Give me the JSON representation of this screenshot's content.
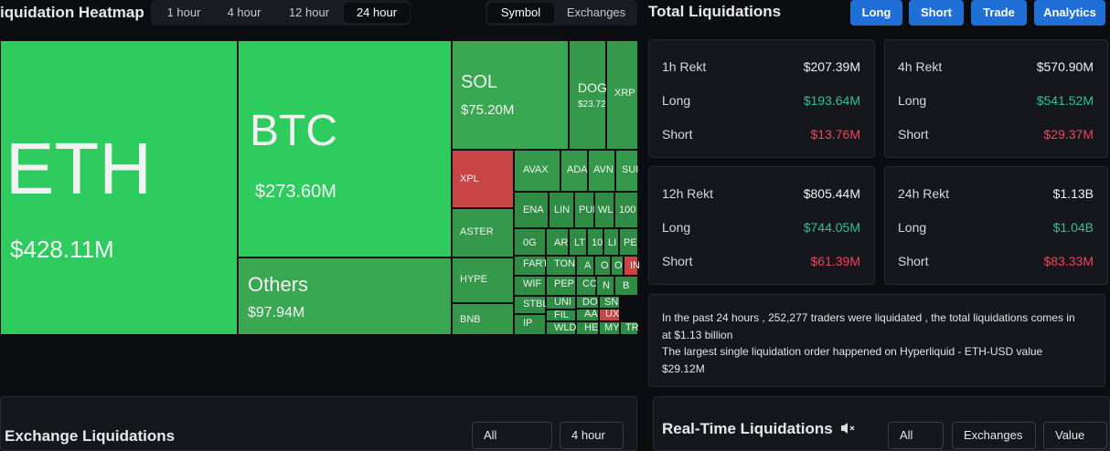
{
  "header": {
    "title": "iquidation Heatmap",
    "time_tabs": [
      "1 hour",
      "4 hour",
      "12 hour",
      "24 hour"
    ],
    "view_tabs": [
      "Symbol",
      "Exchanges"
    ]
  },
  "heatmap": {
    "tiles": [
      {
        "label": "ETH",
        "value": "$428.11M"
      },
      {
        "label": "BTC",
        "value": "$273.60M"
      },
      {
        "label": "Others",
        "value": "$97.94M"
      },
      {
        "label": "SOL",
        "value": "$75.20M"
      },
      {
        "label": "DOG",
        "value": "$23.72"
      },
      {
        "label": "XRP"
      },
      {
        "label": "XPL"
      },
      {
        "label": "AVAX"
      },
      {
        "label": "ADA"
      },
      {
        "label": "AVN"
      },
      {
        "label": "SUI"
      },
      {
        "label": "ASTER"
      },
      {
        "label": "HYPE"
      },
      {
        "label": "BNB"
      },
      {
        "label": "ENA"
      },
      {
        "label": "LIN"
      },
      {
        "label": "PUI"
      },
      {
        "label": "WL"
      },
      {
        "label": "100"
      },
      {
        "label": "0G"
      },
      {
        "label": "AR"
      },
      {
        "label": "LT"
      },
      {
        "label": "10"
      },
      {
        "label": "LI"
      },
      {
        "label": "PE"
      },
      {
        "label": "FART"
      },
      {
        "label": "TON"
      },
      {
        "label": "A"
      },
      {
        "label": "O"
      },
      {
        "label": "O"
      },
      {
        "label": "IN"
      },
      {
        "label": "WIF"
      },
      {
        "label": "PEP"
      },
      {
        "label": "CO"
      },
      {
        "label": "N"
      },
      {
        "label": "B"
      },
      {
        "label": "STBL"
      },
      {
        "label": "UNI"
      },
      {
        "label": "DO"
      },
      {
        "label": "SN"
      },
      {
        "label": "FIL"
      },
      {
        "label": "AA"
      },
      {
        "label": "UX"
      },
      {
        "label": "IP"
      },
      {
        "label": "WLD"
      },
      {
        "label": "HE"
      },
      {
        "label": "MY"
      },
      {
        "label": "TR"
      }
    ]
  },
  "total": {
    "title": "Total Liquidations",
    "buttons": [
      "Long",
      "Short",
      "Trade",
      "Analytics"
    ],
    "cards": [
      {
        "title": "1h Rekt",
        "total": "$207.39M",
        "long_label": "Long",
        "long": "$193.64M",
        "short_label": "Short",
        "short": "$13.76M"
      },
      {
        "title": "4h Rekt",
        "total": "$570.90M",
        "long_label": "Long",
        "long": "$541.52M",
        "short_label": "Short",
        "short": "$29.37M"
      },
      {
        "title": "12h Rekt",
        "total": "$805.44M",
        "long_label": "Long",
        "long": "$744.05M",
        "short_label": "Short",
        "short": "$61.39M"
      },
      {
        "title": "24h Rekt",
        "total": "$1.13B",
        "long_label": "Long",
        "long": "$1.04B",
        "short_label": "Short",
        "short": "$83.33M"
      }
    ],
    "summary": [
      "In the past 24 hours , 252,277 traders were liquidated , the total liquidations comes in",
      "at $1.13 billion",
      "The largest single liquidation order happened on Hyperliquid - ETH-USD value",
      "$29.12M"
    ]
  },
  "exchange": {
    "title": "Exchange Liquidations",
    "filters": [
      "All",
      "4 hour"
    ]
  },
  "realtime": {
    "title": "Real-Time Liquidations",
    "filters": [
      "All",
      "Exchanges",
      "Value"
    ]
  }
}
